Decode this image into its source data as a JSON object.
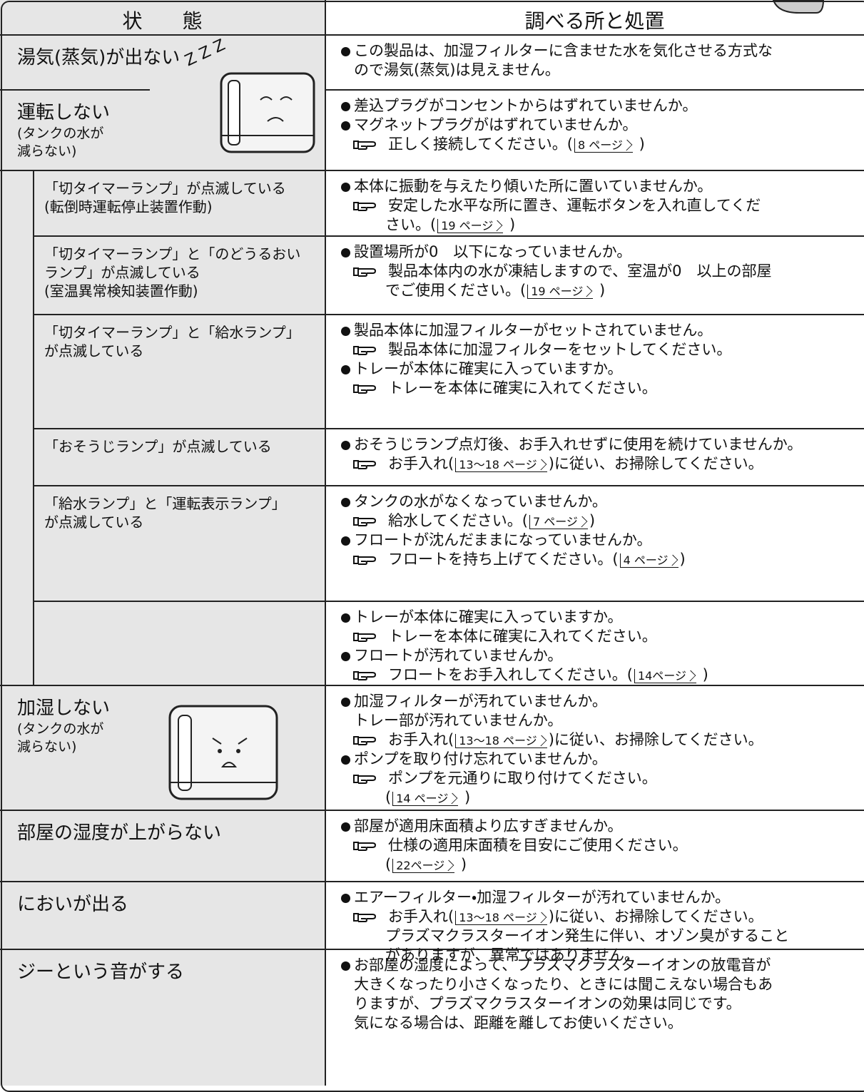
{
  "header": {
    "state": "状　　態",
    "check": "調べる所と処置"
  },
  "rows": [
    {
      "state": [
        "湯気(蒸気)が出ない"
      ],
      "sleep_text": "Z Z Z",
      "checks": [
        {
          "type": "bullet",
          "text": "この製品は、加湿フィルターに含ませた水を気化させる方式な"
        },
        {
          "type": "bcont",
          "text": "ので湯気(蒸気)は見えません。"
        }
      ]
    },
    {
      "state": [
        "運転しない"
      ],
      "note": [
        "(タンクの水が",
        "減らない)"
      ],
      "checks": [
        {
          "type": "bullet",
          "text": "差込プラグがコンセントからはずれていませんか。"
        },
        {
          "type": "bullet",
          "text": "マグネットプラグがはずれていませんか。"
        },
        {
          "type": "hand",
          "text": "正しく接続してください。(",
          "ref": "8 ページ",
          "tail": " )"
        }
      ]
    },
    {
      "sub": [
        "「切タイマーランプ」が点滅している",
        "(転倒時運転停止装置作動)"
      ],
      "checks": [
        {
          "type": "bullet",
          "text": "本体に振動を与えたり傾いた所に置いていませんか。"
        },
        {
          "type": "hand",
          "text": "安定した水平な所に置き、運転ボタンを入れ直してくだ"
        },
        {
          "type": "cont",
          "text": "さい。(",
          "ref": "19 ページ",
          "tail": " )"
        }
      ]
    },
    {
      "sub": [
        "「切タイマーランプ」と「のどうるおい",
        "ランプ」が点滅している",
        "(室温異常検知装置作動)"
      ],
      "checks": [
        {
          "type": "bullet",
          "text": "設置場所が0　以下になっていませんか。"
        },
        {
          "type": "hand",
          "text": "製品本体内の水が凍結しますので、室温が0　以上の部屋"
        },
        {
          "type": "cont",
          "text": "でご使用ください。(",
          "ref": "19 ページ",
          "tail": " )"
        }
      ]
    },
    {
      "sub": [
        "「切タイマーランプ」と「給水ランプ」",
        "が点滅している"
      ],
      "checks": [
        {
          "type": "bullet",
          "text": "製品本体に加湿フィルターがセットされていません。"
        },
        {
          "type": "hand",
          "text": "製品本体に加湿フィルターをセットしてください。"
        },
        {
          "type": "bullet",
          "text": "トレーが本体に確実に入っていますか。"
        },
        {
          "type": "hand",
          "text": "トレーを本体に確実に入れてください。"
        }
      ]
    },
    {
      "sub": [
        "「おそうじランプ」が点滅している"
      ],
      "checks": [
        {
          "type": "bullet",
          "text": "おそうじランプ点灯後、お手入れせずに使用を続けていませんか。"
        },
        {
          "type": "hand",
          "text": "お手入れ(",
          "ref": "13～18 ページ",
          "tail": ")に従い、お掃除してください。"
        }
      ]
    },
    {
      "sub": [
        "「給水ランプ」と「運転表示ランプ」",
        "が点滅している"
      ],
      "checks": [
        {
          "type": "bullet",
          "text": "タンクの水がなくなっていませんか。"
        },
        {
          "type": "hand",
          "text": "給水してください。(",
          "ref": "7 ページ",
          "tail": ")"
        },
        {
          "type": "bullet",
          "text": "フロートが沈んだままになっていませんか。"
        },
        {
          "type": "hand",
          "text": "フロートを持ち上げてください。(",
          "ref": "4 ページ",
          "tail": ")"
        }
      ]
    },
    {
      "sub": [],
      "checks": [
        {
          "type": "bullet",
          "text": "トレーが本体に確実に入っていますか。"
        },
        {
          "type": "hand",
          "text": "トレーを本体に確実に入れてください。"
        },
        {
          "type": "bullet",
          "text": "フロートが汚れていませんか。"
        },
        {
          "type": "hand",
          "text": "フロートをお手入れしてください。(",
          "ref": "14ページ",
          "tail": " )"
        }
      ]
    },
    {
      "state": [
        "加湿しない"
      ],
      "note": [
        "(タンクの水が",
        "減らない)"
      ],
      "checks": [
        {
          "type": "bullet",
          "text": "加湿フィルターが汚れていませんか。"
        },
        {
          "type": "bcont",
          "text": "トレー部が汚れていませんか。"
        },
        {
          "type": "hand",
          "text": "お手入れ(",
          "ref": "13～18 ページ",
          "tail": ")に従い、お掃除してください。"
        },
        {
          "type": "bullet",
          "text": "ポンプを取り付け忘れていませんか。"
        },
        {
          "type": "hand",
          "text": "ポンプを元通りに取り付けてください。"
        },
        {
          "type": "cont",
          "text": "(",
          "ref": "14 ページ",
          "tail": " )"
        }
      ]
    },
    {
      "state": [
        "部屋の湿度が上がらない"
      ],
      "checks": [
        {
          "type": "bullet",
          "text": "部屋が適用床面積より広すぎませんか。"
        },
        {
          "type": "hand",
          "text": "仕様の適用床面積を目安にご使用ください。"
        },
        {
          "type": "cont",
          "text": "(",
          "ref": "22ページ",
          "tail": " )"
        }
      ]
    },
    {
      "state": [
        "においが出る"
      ],
      "checks": [
        {
          "type": "bullet",
          "text": "エアーフィルター・加湿フィルターが汚れていませんか。"
        },
        {
          "type": "hand",
          "text": "お手入れ(",
          "ref": "13～18 ページ",
          "tail": ")に従い、お掃除してください。"
        },
        {
          "type": "cont",
          "text": "プラズマクラスターイオン発生に伴い、オゾン臭がすること"
        },
        {
          "type": "cont",
          "text": "がありますが、異常ではありません。"
        }
      ]
    },
    {
      "state": [
        "ジーという音がする"
      ],
      "checks": [
        {
          "type": "bullet",
          "text": "お部屋の湿度によって、プラズマクラスターイオンの放電音が"
        },
        {
          "type": "bcont",
          "text": "大きくなったり小さくなったり、ときには聞こえない場合もあ"
        },
        {
          "type": "bcont",
          "text": "りますが、プラズマクラスターイオンの効果は同じです。"
        },
        {
          "type": "bcont",
          "text": "気になる場合は、距離を離してお使いください。"
        }
      ]
    }
  ]
}
